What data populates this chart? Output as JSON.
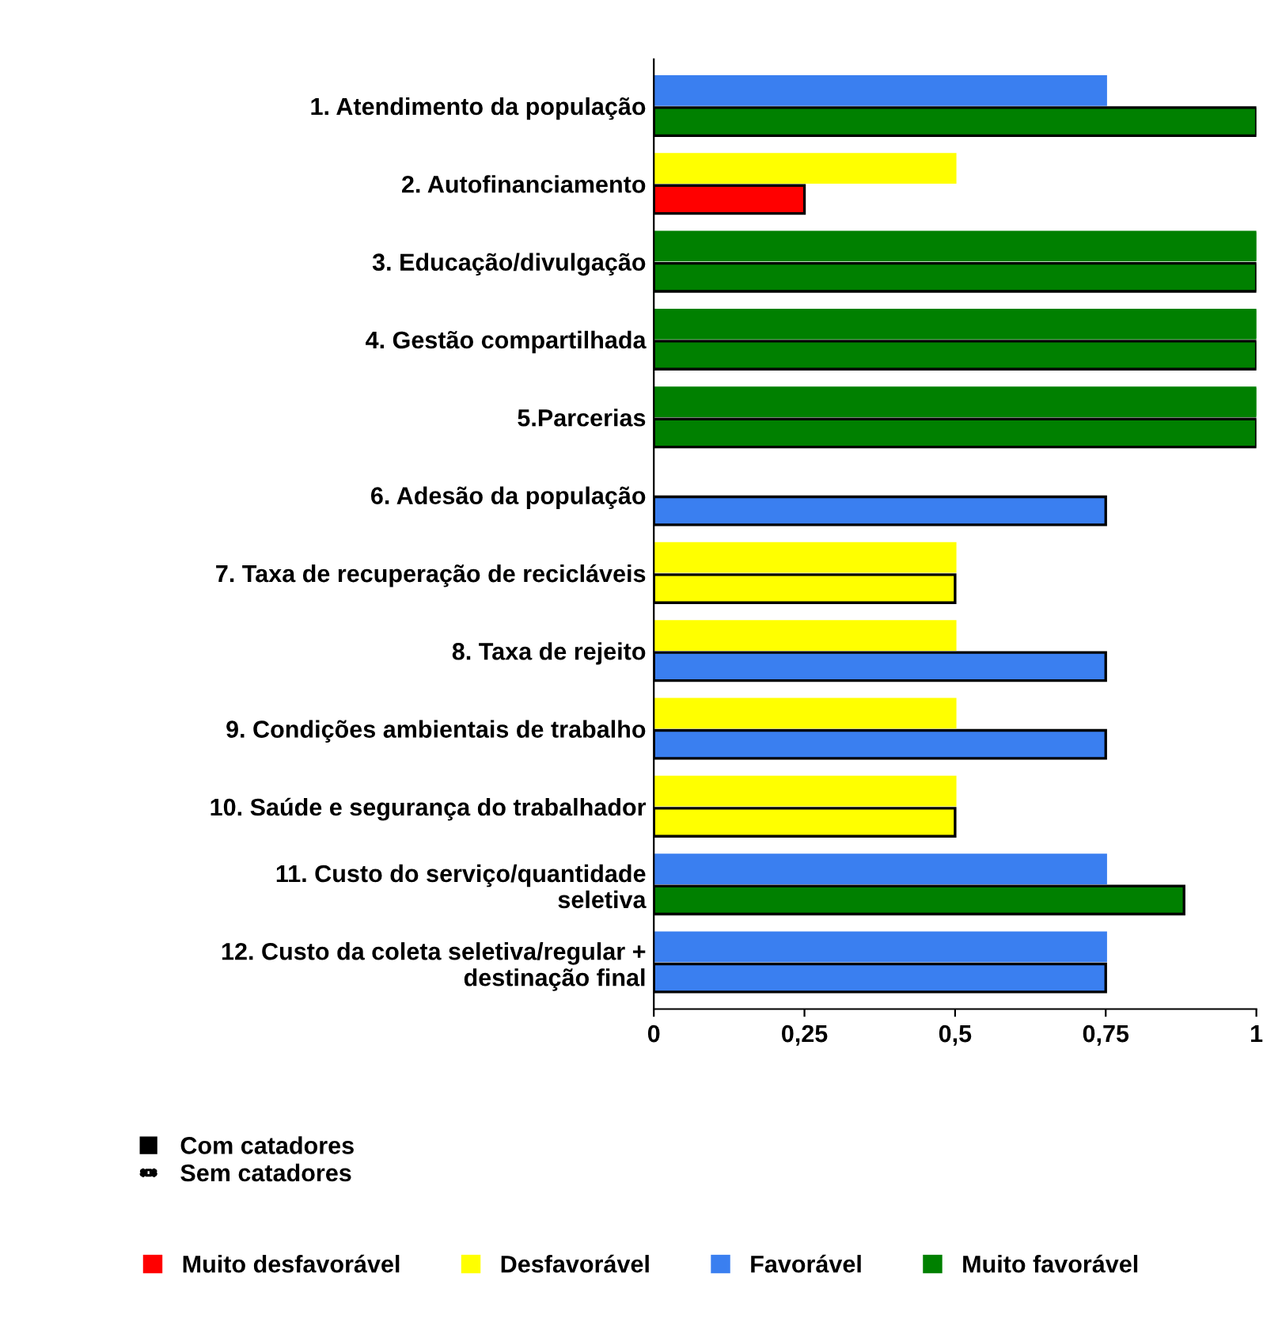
{
  "chart_data": {
    "type": "bar",
    "orientation": "horizontal",
    "categories": [
      "1. Atendimento da população",
      "2. Autofinanciamento",
      "3. Educação/divulgação",
      "4. Gestão compartilhada",
      "5.Parcerias",
      "6. Adesão da população",
      "7. Taxa de recuperação de recicláveis",
      "8. Taxa de rejeito",
      "9. Condições ambientais de trabalho",
      "10. Saúde e segurança do trabalhador",
      "11. Custo do serviço/quantidade\nseletiva",
      "12. Custo da coleta seletiva/regular +\ndestinação final"
    ],
    "series": [
      {
        "values": [
          1,
          0.25,
          1,
          1,
          1,
          0.75,
          0.5,
          0.75,
          0.75,
          0.5,
          0.88,
          0.75
        ],
        "colors": [
          "#008000",
          "#ff0000",
          "#008000",
          "#008000",
          "#008000",
          "#3a7ff0",
          "#ffff00",
          "#3a7ff0",
          "#3a7ff0",
          "#ffff00",
          "#008000",
          "#3a7ff0"
        ]
      },
      {
        "values": [
          0.75,
          0.5,
          1,
          1,
          1,
          null,
          0.5,
          0.5,
          0.5,
          0.5,
          0.75,
          0.75
        ],
        "colors": [
          "#3a7ff0",
          "#ffff00",
          "#008000",
          "#008000",
          "#008000",
          "#3a7ff0",
          "#ffff00",
          "#ffff00",
          "#ffff00",
          "#ffff00",
          "#3a7ff0",
          "#3a7ff0"
        ]
      }
    ],
    "xlim": [
      0,
      1
    ],
    "xticks": [
      0,
      {
        "value": 0.25,
        "label": "0,25"
      },
      {
        "value": 0.5,
        "label": "0,5"
      },
      {
        "value": 0.75,
        "label": "0,75"
      },
      1
    ],
    "annotations": [
      "Com catadores",
      "Sem catadores",
      "Muito desfavorável",
      "Desfavorável",
      "Favorável",
      "Muito favorável"
    ]
  }
}
